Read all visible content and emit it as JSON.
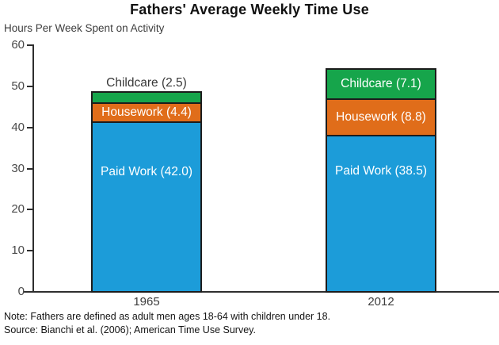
{
  "chart_data": {
    "type": "bar",
    "stacked": true,
    "title": "Fathers' Average Weekly Time Use",
    "ylabel": "Hours Per Week Spent on Activity",
    "xlabel": "",
    "categories": [
      "1965",
      "2012"
    ],
    "series": [
      {
        "name": "Paid Work",
        "values": [
          42.0,
          38.5
        ],
        "color": "#1C9CD9"
      },
      {
        "name": "Housework",
        "values": [
          4.4,
          8.8
        ],
        "color": "#E06D1A"
      },
      {
        "name": "Childcare",
        "values": [
          2.5,
          7.1
        ],
        "color": "#16A54B"
      }
    ],
    "totals": [
      48.9,
      54.4
    ],
    "segment_labels": {
      "1965": [
        "Paid Work (42.0)",
        "Housework (4.4)",
        "Childcare (2.5)"
      ],
      "2012": [
        "Paid Work (38.5)",
        "Housework (8.8)",
        "Childcare (7.1)"
      ]
    },
    "ylim": [
      0,
      60
    ],
    "yticks": [
      0,
      10,
      20,
      30,
      40,
      50,
      60
    ],
    "grid": false,
    "legend": "none",
    "bar_border_color": "#1c1c1c",
    "note": "Note: Fathers are defined as adult men ages 18-64 with children under 18.",
    "source": "Source: Bianchi et al. (2006); American Time Use Survey."
  }
}
